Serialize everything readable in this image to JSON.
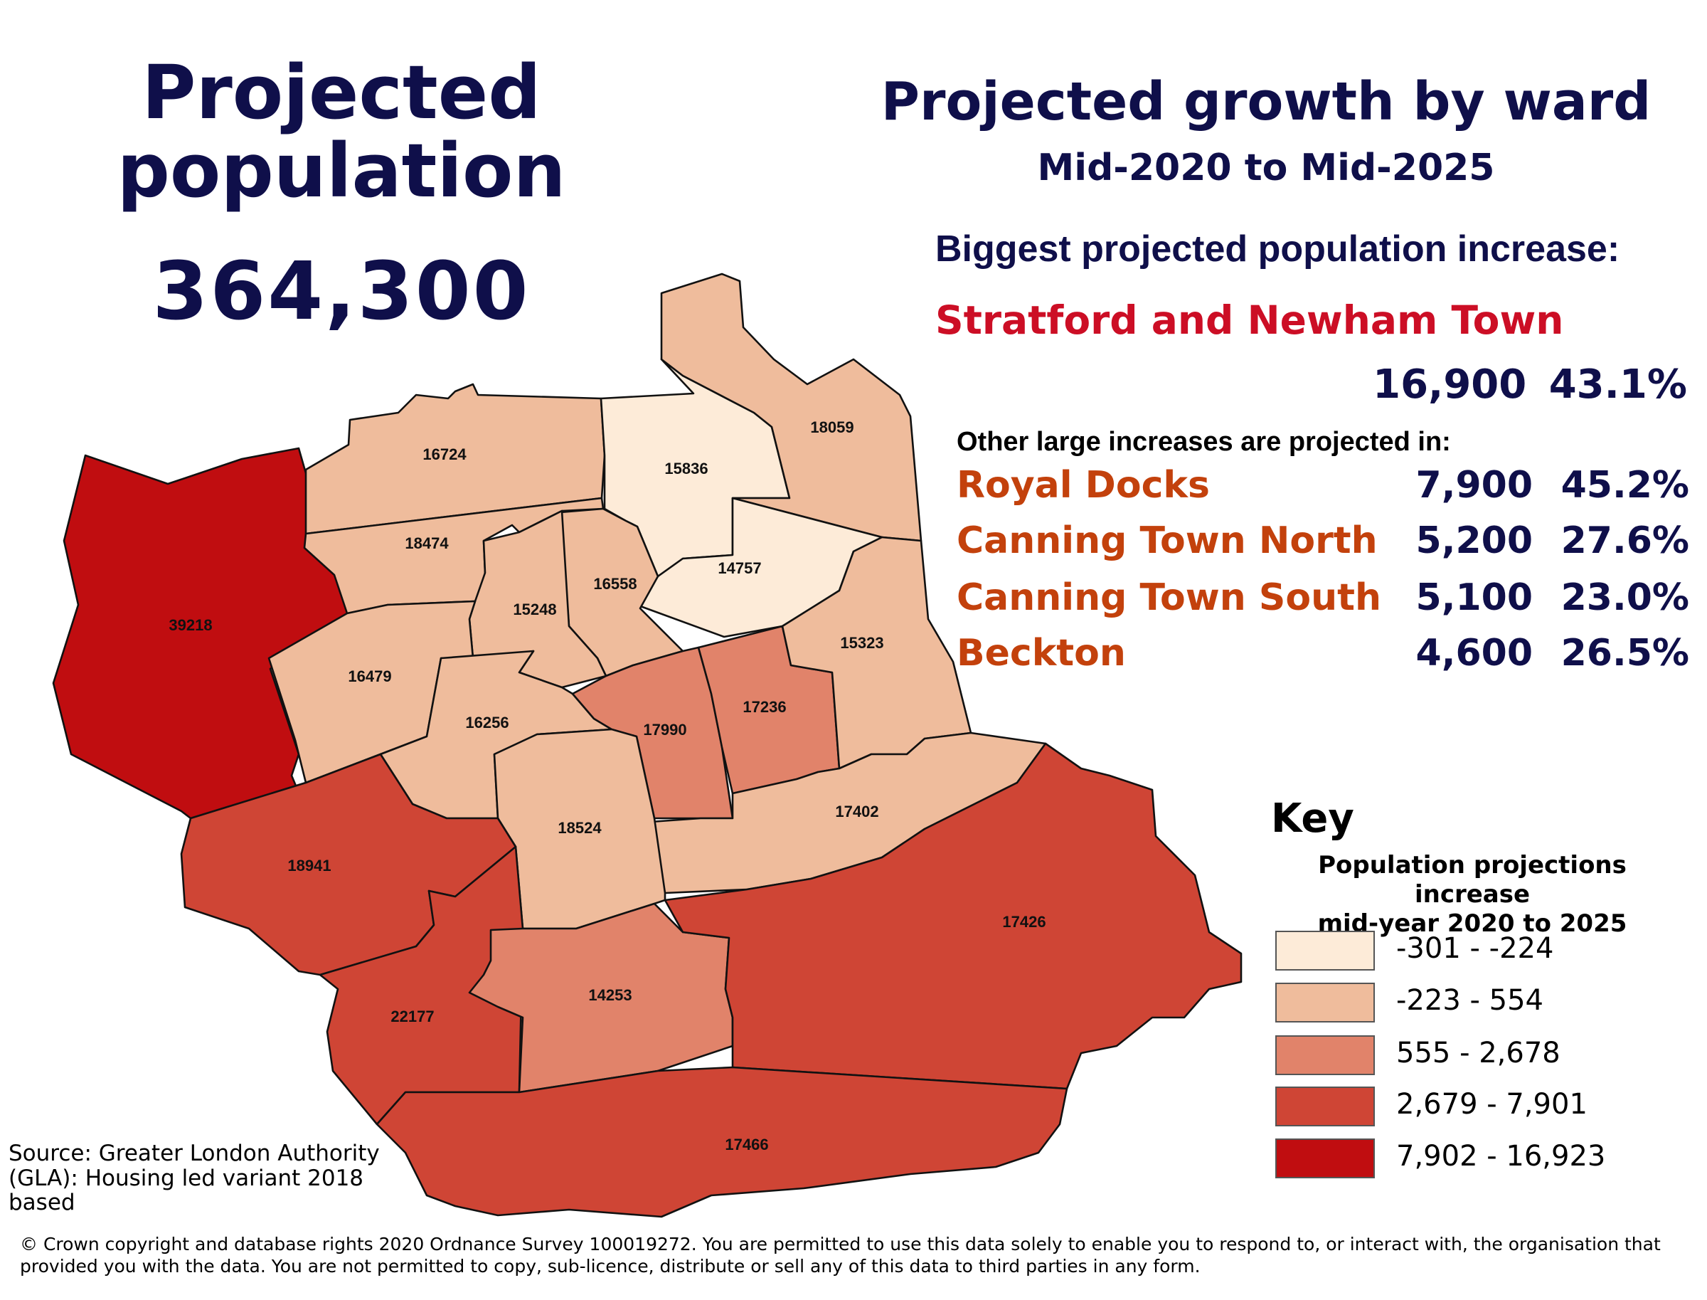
{
  "header": {
    "title_line1": "Projected",
    "title_line2": "population",
    "total": "364,300"
  },
  "growth": {
    "title": "Projected growth by ward",
    "subtitle": "Mid-2020 to Mid-2025",
    "biggest_label": "Biggest projected population increase:",
    "biggest_ward": "Stratford and Newham Town",
    "biggest_abs": "16,900",
    "biggest_pct": "43.1%",
    "other_label": "Other large increases are projected in:",
    "others": [
      {
        "name": "Royal Docks",
        "abs": "7,900",
        "pct": "45.2%"
      },
      {
        "name": "Canning Town North",
        "abs": "5,200",
        "pct": "27.6%"
      },
      {
        "name": "Canning Town South",
        "abs": "5,100",
        "pct": "23.0%"
      },
      {
        "name": "Beckton",
        "abs": "4,600",
        "pct": "26.5%"
      }
    ]
  },
  "key": {
    "title": "Key",
    "subtitle_line1": "Population projections increase",
    "subtitle_line2": "mid-year 2020 to 2025",
    "classes": [
      {
        "label": "-301  -  -224",
        "color": "#fdebd8"
      },
      {
        "label": "-223  -  554",
        "color": "#efbc9c"
      },
      {
        "label": "555 - 2,678",
        "color": "#e1836a"
      },
      {
        "label": "2,679 - 7,901",
        "color": "#cf4535"
      },
      {
        "label": "7,902 - 16,923",
        "color": "#c00d10"
      }
    ]
  },
  "map": {
    "wards": [
      {
        "id": "w39218",
        "label": "39218",
        "class": 4
      },
      {
        "id": "w16724",
        "label": "16724",
        "class": 1
      },
      {
        "id": "w18474",
        "label": "18474",
        "class": 1
      },
      {
        "id": "w15836",
        "label": "15836",
        "class": 0
      },
      {
        "id": "w18059",
        "label": "18059",
        "class": 1
      },
      {
        "id": "w14757",
        "label": "14757",
        "class": 0
      },
      {
        "id": "w16558",
        "label": "16558",
        "class": 1
      },
      {
        "id": "w15248",
        "label": "15248",
        "class": 1
      },
      {
        "id": "w16479",
        "label": "16479",
        "class": 1
      },
      {
        "id": "w16256",
        "label": "16256",
        "class": 1
      },
      {
        "id": "w17990",
        "label": "17990",
        "class": 2
      },
      {
        "id": "w17236",
        "label": "17236",
        "class": 2
      },
      {
        "id": "w15323",
        "label": "15323",
        "class": 1
      },
      {
        "id": "w17402",
        "label": "17402",
        "class": 1
      },
      {
        "id": "w18524",
        "label": "18524",
        "class": 1
      },
      {
        "id": "w18941",
        "label": "18941",
        "class": 3
      },
      {
        "id": "w22177",
        "label": "22177",
        "class": 3
      },
      {
        "id": "w14253",
        "label": "14253",
        "class": 2
      },
      {
        "id": "w17426",
        "label": "17426",
        "class": 3
      },
      {
        "id": "w17466",
        "label": "17466",
        "class": 3
      }
    ]
  },
  "source": "Source: Greater London Authority (GLA): Housing led variant 2018 based",
  "copyright": "© Crown copyright and database rights 2020 Ordnance Survey 100019272. You are permitted to use this data solely to enable you to respond to, or interact with, the organisation that provided you with the data. You are not permitted to copy, sub-licence, distribute or sell any of this data to third parties in any form."
}
